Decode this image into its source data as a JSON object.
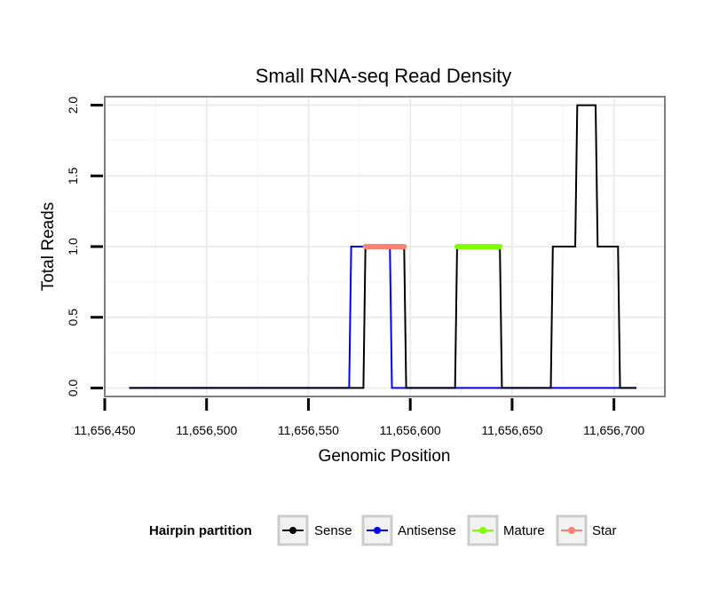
{
  "chart_data": {
    "type": "line",
    "title": "Small RNA-seq Read Density",
    "xlabel": "Genomic Position",
    "ylabel": "Total Reads",
    "xlim": [
      11656450,
      11656725
    ],
    "ylim": [
      -0.06,
      2.06
    ],
    "x_ticks": [
      11656450,
      11656500,
      11656550,
      11656600,
      11656650,
      11656700
    ],
    "x_tick_labels": [
      "11,656,450",
      "11,656,500",
      "11,656,550",
      "11,656,600",
      "11,656,650",
      "11,656,700"
    ],
    "y_ticks": [
      0,
      0.5,
      1,
      1.5,
      2
    ],
    "y_tick_labels": [
      "0.0",
      "0.5",
      "1.0",
      "1.5",
      "2.0"
    ],
    "grid": true,
    "legend": {
      "title": "Hairpin partition",
      "position": "bottom",
      "entries": [
        {
          "name": "Sense",
          "color": "#000000"
        },
        {
          "name": "Antisense",
          "color": "#0000ff"
        },
        {
          "name": "Mature",
          "color": "#7fff00"
        },
        {
          "name": "Star",
          "color": "#fa8072"
        }
      ]
    },
    "series": [
      {
        "name": "Antisense",
        "color": "#0000ff",
        "x": [
          11656462,
          11656570,
          11656571,
          11656576,
          11656577,
          11656590,
          11656591,
          11656704,
          11656711
        ],
        "y": [
          0,
          0,
          1,
          1,
          1,
          1,
          0,
          0,
          0
        ]
      },
      {
        "name": "Sense",
        "color": "#000000",
        "x": [
          11656462,
          11656577,
          11656578,
          11656597,
          11656598,
          11656622,
          11656623,
          11656644,
          11656645,
          11656669,
          11656670,
          11656681,
          11656682,
          11656691,
          11656692,
          11656702,
          11656703,
          11656711
        ],
        "y": [
          0,
          0,
          1,
          1,
          0,
          0,
          1,
          1,
          0,
          0,
          1,
          1,
          2,
          2,
          1,
          1,
          0,
          0
        ]
      },
      {
        "name": "Mature",
        "color": "#7fff00",
        "x": [
          11656623,
          11656644
        ],
        "y": [
          1,
          1
        ]
      },
      {
        "name": "Star",
        "color": "#fa8072",
        "x": [
          11656578,
          11656597
        ],
        "y": [
          1,
          1
        ]
      }
    ]
  }
}
